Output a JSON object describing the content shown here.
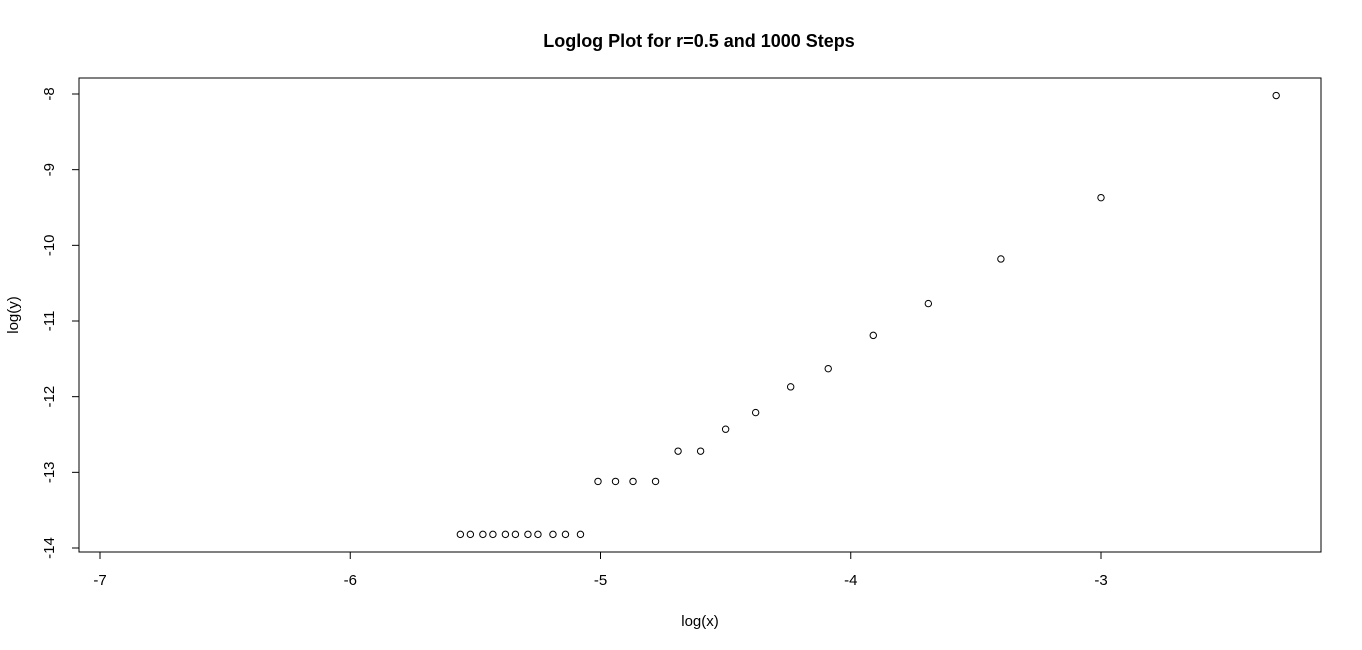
{
  "chart_data": {
    "type": "scatter",
    "title": "Loglog Plot for r=0.5 and 1000 Steps",
    "xlabel": "log(x)",
    "ylabel": "log(y)",
    "xlim": [
      -7.0,
      -2.3
    ],
    "ylim": [
      -14.0,
      -8.0
    ],
    "xticks": [
      -7,
      -6,
      -5,
      -4,
      -3
    ],
    "xtick_labels": [
      "-7",
      "-6",
      "-5",
      "-4",
      "-3"
    ],
    "yticks": [
      -14,
      -13,
      -12,
      -11,
      -10,
      -9,
      -8
    ],
    "ytick_labels": [
      "-14",
      "-13",
      "-12",
      "-11",
      "-10",
      "-9",
      "-8"
    ],
    "grid": false,
    "marker": "open-circle",
    "x": [
      -5.56,
      -5.52,
      -5.47,
      -5.43,
      -5.38,
      -5.34,
      -5.29,
      -5.25,
      -5.19,
      -5.14,
      -5.08,
      -5.01,
      -4.94,
      -4.87,
      -4.78,
      -4.69,
      -4.6,
      -4.5,
      -4.38,
      -4.24,
      -4.09,
      -3.91,
      -3.69,
      -3.4,
      -3.0,
      -2.3
    ],
    "y": [
      -13.82,
      -13.82,
      -13.82,
      -13.82,
      -13.82,
      -13.82,
      -13.82,
      -13.82,
      -13.82,
      -13.82,
      -13.82,
      -13.12,
      -13.12,
      -13.12,
      -13.12,
      -12.72,
      -12.72,
      -12.43,
      -12.21,
      -11.87,
      -11.63,
      -11.19,
      -10.77,
      -10.18,
      -9.37,
      -8.02
    ]
  }
}
